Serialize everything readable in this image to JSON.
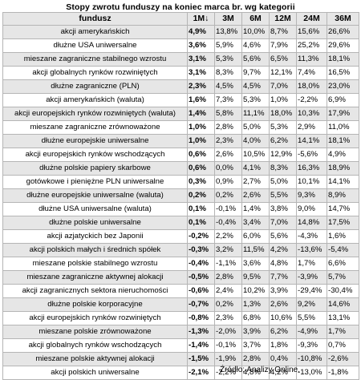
{
  "title": "Stopy zwrotu funduszy na koniec marca br. wg kategorii",
  "columns": [
    "fundusz",
    "1M↓",
    "3M",
    "6M",
    "12M",
    "24M",
    "36M"
  ],
  "rows": [
    [
      "akcji amerykańskich",
      "4,9%",
      "13,8%",
      "10,0%",
      "8,7%",
      "15,6%",
      "26,6%"
    ],
    [
      "dłużne USA uniwersalne",
      "3,6%",
      "5,9%",
      "4,6%",
      "7,9%",
      "25,2%",
      "29,6%"
    ],
    [
      "mieszane zagraniczne stabilnego wzrostu",
      "3,1%",
      "5,3%",
      "5,6%",
      "6,5%",
      "11,3%",
      "18,1%"
    ],
    [
      "akcji globalnych rynków rozwiniętych",
      "3,1%",
      "8,3%",
      "9,7%",
      "12,1%",
      "7,4%",
      "16,5%"
    ],
    [
      "dłużne zagraniczne (PLN)",
      "2,3%",
      "4,5%",
      "4,5%",
      "7,0%",
      "18,0%",
      "23,0%"
    ],
    [
      "akcji amerykańskich (waluta)",
      "1,6%",
      "7,3%",
      "5,3%",
      "1,0%",
      "-2,2%",
      "6,9%"
    ],
    [
      "akcji europejskich rynków rozwiniętych (waluta)",
      "1,4%",
      "5,8%",
      "11,1%",
      "18,0%",
      "10,3%",
      "17,9%"
    ],
    [
      "mieszane zagraniczne zrównoważone",
      "1,0%",
      "2,8%",
      "5,0%",
      "5,3%",
      "2,9%",
      "11,0%"
    ],
    [
      "dłużne europejskie uniwersalne",
      "1,0%",
      "2,3%",
      "4,0%",
      "6,2%",
      "14,1%",
      "18,1%"
    ],
    [
      "akcji europejskich rynków wschodzących",
      "0,6%",
      "2,6%",
      "10,5%",
      "12,9%",
      "-5,6%",
      "4,9%"
    ],
    [
      "dłużne polskie papiery skarbowe",
      "0,6%",
      "0,0%",
      "4,1%",
      "8,3%",
      "16,3%",
      "18,9%"
    ],
    [
      "gotówkowe i pieniężne PLN uniwersalne",
      "0,3%",
      "0,9%",
      "2,7%",
      "5,0%",
      "10,1%",
      "14,1%"
    ],
    [
      "dłużne europejskie uniwersalne (waluta)",
      "0,2%",
      "0,2%",
      "2,6%",
      "5,5%",
      "9,3%",
      "8,9%"
    ],
    [
      "dłużne USA uniwersalne (waluta)",
      "0,1%",
      "-0,1%",
      "1,4%",
      "3,8%",
      "9,0%",
      "14,7%"
    ],
    [
      "dłużne polskie uniwersalne",
      "0,1%",
      "-0,4%",
      "3,4%",
      "7,0%",
      "14,8%",
      "17,5%"
    ],
    [
      "akcji azjatyckich bez Japonii",
      "-0,2%",
      "2,2%",
      "6,0%",
      "5,6%",
      "-4,3%",
      "1,6%"
    ],
    [
      "akcji polskich małych i średnich spółek",
      "-0,3%",
      "3,2%",
      "11,5%",
      "4,2%",
      "-13,6%",
      "-5,4%"
    ],
    [
      "mieszane polskie stabilnego wzrostu",
      "-0,4%",
      "-1,1%",
      "3,6%",
      "4,8%",
      "1,7%",
      "6,6%"
    ],
    [
      "mieszane zagraniczne aktywnej alokacji",
      "-0,5%",
      "2,8%",
      "9,5%",
      "7,7%",
      "-3,9%",
      "5,7%"
    ],
    [
      "akcji zagranicznych sektora nieruchomości",
      "-0,6%",
      "2,4%",
      "10,2%",
      "3,9%",
      "-29,4%",
      "-30,4%"
    ],
    [
      "dłużne polskie korporacyjne",
      "-0,7%",
      "0,2%",
      "1,3%",
      "2,6%",
      "9,2%",
      "14,6%"
    ],
    [
      "akcji europejskich rynków rozwiniętych",
      "-0,8%",
      "2,3%",
      "6,8%",
      "10,6%",
      "5,5%",
      "13,1%"
    ],
    [
      "mieszane polskie zrównoważone",
      "-1,3%",
      "-2,0%",
      "3,9%",
      "6,2%",
      "-4,9%",
      "1,7%"
    ],
    [
      "akcji globalnych rynków wschodzących",
      "-1,4%",
      "-0,1%",
      "3,7%",
      "1,8%",
      "-9,3%",
      "0,7%"
    ],
    [
      "mieszane polskie aktywnej alokacji",
      "-1,5%",
      "-1,9%",
      "2,8%",
      "0,4%",
      "-10,8%",
      "-2,6%"
    ],
    [
      "akcji polskich uniwersalne",
      "-2,1%",
      "-2,2%",
      "4,8%",
      "4,2%",
      "-13,0%",
      "-1,8%"
    ]
  ],
  "source": "Źródło: Analizy Online."
}
